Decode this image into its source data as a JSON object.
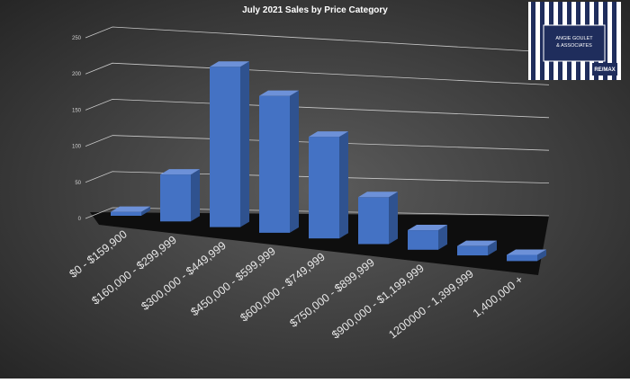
{
  "chart_data": {
    "type": "bar3d",
    "title": "July 2021 Sales by Price Category",
    "categories": [
      "$0 - $159,900",
      "$160,000 - $299,999",
      "$300,000 - $449,999",
      "$450,000 - $599,999",
      "$600,000 - $749,999",
      "$750,000 - $899,999",
      "$900,000 - $1,199,999",
      "1200000 - 1,399,999",
      "1,400,000 +"
    ],
    "values": [
      5,
      60,
      205,
      175,
      130,
      60,
      25,
      12,
      8
    ],
    "color": "#4472c4",
    "ylim": [
      0,
      250
    ],
    "yticks": [
      0,
      50,
      100,
      150,
      200,
      250
    ],
    "grid": true
  },
  "logo": {
    "name": "ANGIE GOULET & ASSOCIATES",
    "brand": "RE/MAX"
  }
}
